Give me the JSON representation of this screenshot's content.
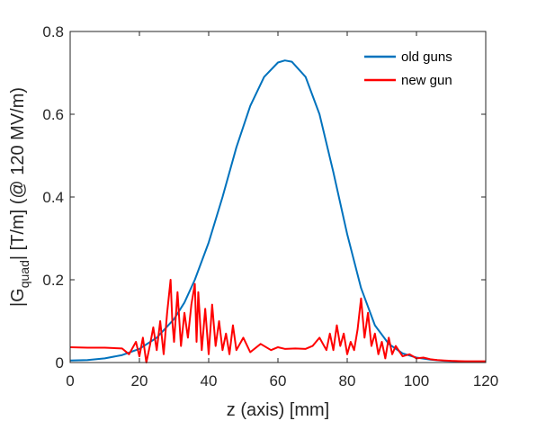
{
  "chart_data": {
    "type": "line",
    "title": "",
    "xlabel": "z (axis) [mm]",
    "ylabel": {
      "prefix": "|G",
      "subscript": "quad",
      "suffix": "| [T/m] (@ 120 MV/m)"
    },
    "xlim": [
      0,
      120
    ],
    "ylim": [
      0,
      0.8
    ],
    "xticks": [
      0,
      20,
      40,
      60,
      80,
      100,
      120
    ],
    "yticks": [
      0,
      0.2,
      0.4,
      0.6,
      0.8
    ],
    "xtick_labels": [
      "0",
      "20",
      "40",
      "60",
      "80",
      "100",
      "120"
    ],
    "ytick_labels": [
      "0",
      "0.2",
      "0.4",
      "0.6",
      "0.8"
    ],
    "grid": false,
    "legend_position": "top-right",
    "series": [
      {
        "name": "old guns",
        "color": "#0072BD",
        "x": [
          0,
          5,
          10,
          15,
          20,
          25,
          30,
          33,
          36,
          40,
          44,
          48,
          52,
          56,
          60,
          62,
          64,
          68,
          72,
          76,
          80,
          84,
          88,
          92,
          96,
          100,
          104,
          108,
          112,
          116,
          120
        ],
        "y": [
          0.005,
          0.006,
          0.01,
          0.018,
          0.033,
          0.06,
          0.105,
          0.145,
          0.2,
          0.29,
          0.4,
          0.52,
          0.62,
          0.69,
          0.725,
          0.73,
          0.727,
          0.69,
          0.6,
          0.46,
          0.31,
          0.18,
          0.09,
          0.045,
          0.022,
          0.012,
          0.007,
          0.004,
          0.003,
          0.002,
          0.002
        ]
      },
      {
        "name": "new gun",
        "color": "#FF0000",
        "x": [
          0,
          5,
          10,
          15,
          17,
          19,
          20,
          21,
          22,
          23,
          24,
          25,
          26,
          27,
          28,
          29,
          29.5,
          30,
          31,
          32,
          33,
          34,
          35,
          36,
          36.5,
          37,
          38,
          39,
          40,
          41,
          42,
          43,
          44,
          45,
          46,
          47,
          48,
          50,
          52,
          55,
          58,
          60,
          62,
          65,
          68,
          70,
          72,
          74,
          75,
          76,
          77,
          78,
          79,
          80,
          81,
          82,
          83,
          84,
          85,
          86,
          87,
          88,
          89,
          90,
          91,
          92,
          93,
          94,
          96,
          98,
          100,
          102,
          104,
          106,
          108,
          110,
          114,
          120
        ],
        "y": [
          0.037,
          0.036,
          0.036,
          0.034,
          0.02,
          0.05,
          0.015,
          0.06,
          0.0,
          0.04,
          0.085,
          0.03,
          0.1,
          0.02,
          0.12,
          0.2,
          0.1,
          0.05,
          0.17,
          0.04,
          0.12,
          0.06,
          0.14,
          0.19,
          0.05,
          0.17,
          0.03,
          0.13,
          0.02,
          0.14,
          0.04,
          0.1,
          0.03,
          0.07,
          0.02,
          0.09,
          0.03,
          0.06,
          0.025,
          0.045,
          0.03,
          0.037,
          0.033,
          0.034,
          0.033,
          0.04,
          0.06,
          0.03,
          0.07,
          0.03,
          0.09,
          0.04,
          0.07,
          0.02,
          0.05,
          0.03,
          0.08,
          0.155,
          0.06,
          0.12,
          0.04,
          0.07,
          0.02,
          0.05,
          0.01,
          0.06,
          0.02,
          0.04,
          0.015,
          0.02,
          0.01,
          0.012,
          0.008,
          0.006,
          0.005,
          0.004,
          0.003,
          0.003
        ]
      }
    ]
  }
}
